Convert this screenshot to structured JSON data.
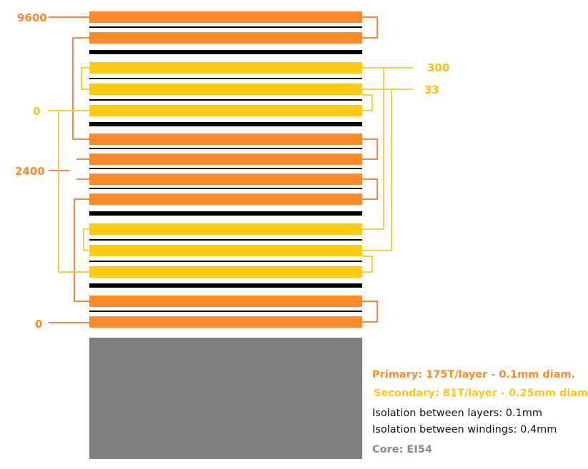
{
  "colors": {
    "primary": "#ff8a2a",
    "secondary": "#ffcc14",
    "insulation": "#000000",
    "core": "#808080",
    "connector_primary": "#f2894a",
    "connector_secondary": "#ffcc40"
  },
  "tap_labels": {
    "primary_top": "9600",
    "primary_mid": "2400",
    "primary_bottom": "0",
    "secondary_zero": "0",
    "secondary_300": "300",
    "secondary_33": "33"
  },
  "legend": {
    "primary": "Primary: 175T/layer - 0.1mm diam.",
    "secondary": "Secondary: 81T/layer - 0.25mm diam",
    "layer_isolation": "Isolation between layers: 0.1mm",
    "winding_isolation": "Isolation between windings: 0.4mm",
    "core": "Core: EI54"
  }
}
